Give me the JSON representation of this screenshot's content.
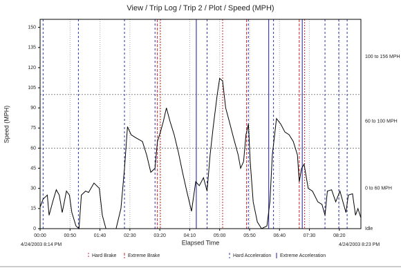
{
  "chart_data": {
    "type": "line",
    "title": "View / Trip Log / Trip 2 / Plot / Speed (MPH)",
    "x_label": "Elapsed Time",
    "y_label": "Speed (MPH)",
    "start_label": "4/24/2003 8:14 PM",
    "end_label": "4/24/2003 8:23 PM",
    "color": "#000000",
    "x": [
      0,
      5,
      12,
      15,
      21,
      27,
      32,
      37,
      44,
      49,
      53,
      60,
      65,
      69,
      76,
      81,
      90,
      99,
      104,
      110,
      127,
      135,
      141,
      146,
      152,
      159,
      171,
      178,
      185,
      192,
      196,
      201,
      206,
      211,
      217,
      224,
      231,
      238,
      245,
      253,
      260,
      266,
      273,
      279,
      284,
      289,
      296,
      300,
      305,
      310,
      316,
      323,
      331,
      335,
      340,
      344,
      348,
      351,
      356,
      363,
      370,
      379,
      384,
      388,
      395,
      402,
      409,
      416,
      423,
      430,
      433,
      437,
      441,
      448,
      455,
      464,
      471,
      476,
      480,
      487,
      494,
      501,
      506,
      511,
      515,
      522,
      527,
      531,
      536
    ],
    "values": [
      16,
      22,
      25,
      10,
      20,
      29,
      25,
      12,
      28,
      25,
      12,
      2,
      0,
      25,
      28,
      27,
      34,
      30,
      10,
      0,
      0,
      15,
      45,
      76,
      70,
      68,
      65,
      55,
      42,
      45,
      65,
      72,
      80,
      90,
      80,
      70,
      57,
      42,
      28,
      13,
      35,
      32,
      38,
      28,
      55,
      75,
      100,
      112,
      110,
      90,
      80,
      68,
      55,
      45,
      50,
      70,
      78,
      50,
      20,
      5,
      0,
      2,
      20,
      55,
      82,
      78,
      72,
      70,
      65,
      55,
      35,
      45,
      48,
      30,
      28,
      20,
      18,
      10,
      28,
      29,
      20,
      28,
      20,
      12,
      25,
      26,
      10,
      15,
      8
    ],
    "xlim": [
      0,
      536
    ],
    "ylim": [
      0,
      156
    ],
    "xticks": [
      {
        "value": 0,
        "label": "00:00"
      },
      {
        "value": 50,
        "label": "00:50"
      },
      {
        "value": 100,
        "label": "01:40"
      },
      {
        "value": 150,
        "label": "02:30"
      },
      {
        "value": 200,
        "label": "03:20"
      },
      {
        "value": 250,
        "label": "04:10"
      },
      {
        "value": 300,
        "label": "05:00"
      },
      {
        "value": 350,
        "label": "05:50"
      },
      {
        "value": 400,
        "label": "06:40"
      },
      {
        "value": 450,
        "label": "07:30"
      },
      {
        "value": 500,
        "label": "08:20"
      }
    ],
    "yticks": [
      0,
      15,
      30,
      45,
      60,
      75,
      90,
      105,
      120,
      135,
      150
    ],
    "zones": [
      {
        "label": "Idle",
        "from": 0,
        "to": 0
      },
      {
        "label": "0 to 60 MPH",
        "from": 0,
        "to": 60
      },
      {
        "label": "60 to 100 MPH",
        "from": 60,
        "to": 100
      },
      {
        "label": "100 to 156 MPH",
        "from": 100,
        "to": 156
      }
    ],
    "events": [
      {
        "name": "Hard Brake",
        "color": "#cc2222",
        "dash": "2,2",
        "times": [
          201,
          305,
          442
        ]
      },
      {
        "name": "Extreme Brake",
        "color": "#cc2222",
        "dash": "4,2",
        "times": [
          196,
          345,
          433
        ]
      },
      {
        "name": "Hard Acceleration",
        "color": "#2233bb",
        "dash": "3,3",
        "times": [
          5,
          64,
          141,
          192,
          279,
          348,
          390,
          476,
          499,
          513
        ]
      },
      {
        "name": "Extreme Acceleration",
        "color": "#1a1a99",
        "dash": "none",
        "times": [
          261,
          382,
          438
        ]
      }
    ],
    "grid": true
  }
}
